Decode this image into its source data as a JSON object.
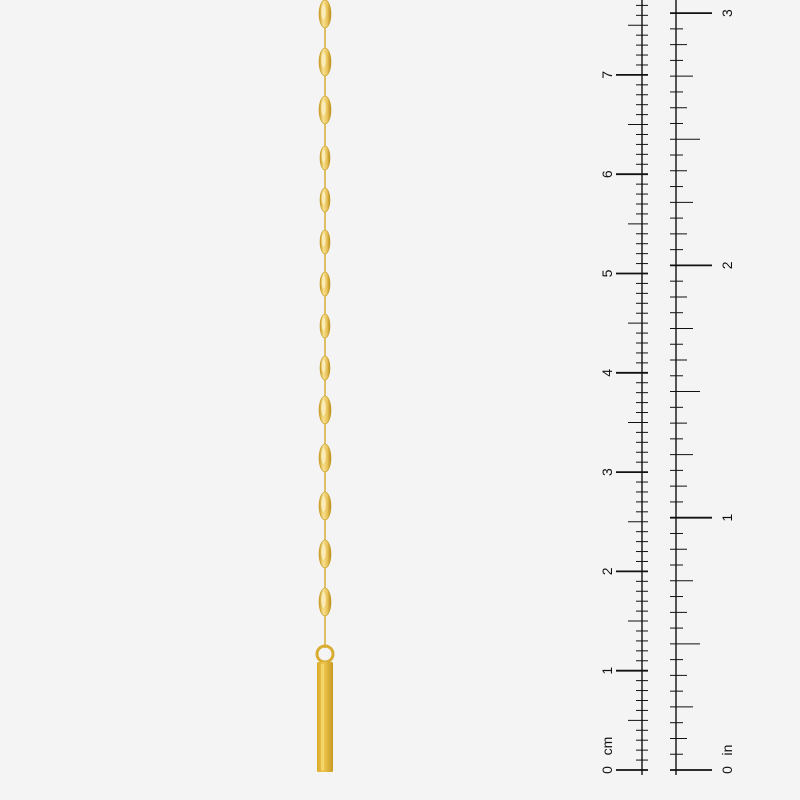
{
  "photo": {
    "subject": "gold chain earring with bar drop",
    "colors": {
      "background": "#f4f4f4",
      "gold_light": "#f3d98a",
      "gold_mid": "#e2b83e",
      "gold_dark": "#b88a18",
      "ruler_ink": "#111111"
    }
  },
  "ruler": {
    "cm_unit": "cm",
    "in_unit": "in",
    "cm_labels": [
      "0",
      "1",
      "2",
      "3",
      "4",
      "5",
      "6",
      "7"
    ],
    "in_labels": [
      "0",
      "1",
      "2",
      "3"
    ]
  }
}
